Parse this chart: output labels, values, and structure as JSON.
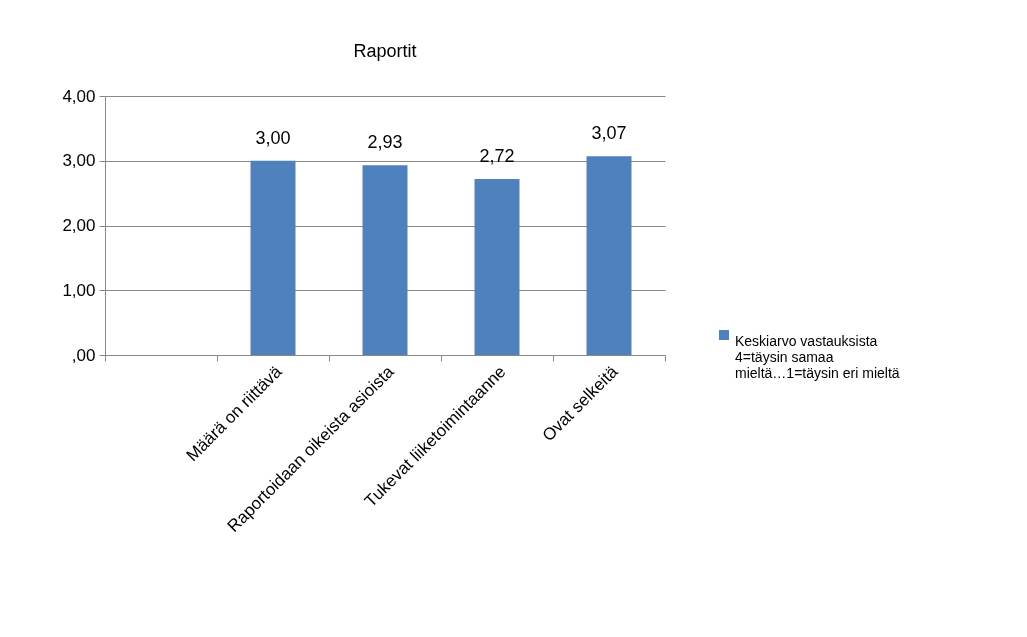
{
  "chart_data": {
    "type": "bar",
    "title": "Raportit",
    "categories": [
      null,
      "Määrä on riittävä",
      "Raportoidaan oikeista asioista",
      "Tukevat liiketoimintaanne",
      "Ovat selkeitä"
    ],
    "series": [
      {
        "name": "Keskiarvo vastauksista 4=täysin samaa mieltä…1=täysin eri mieltä",
        "color": "#4f81bd",
        "values": [
          null,
          3.0,
          2.93,
          2.72,
          3.07
        ],
        "value_labels": [
          null,
          "3,00",
          "2,93",
          "2,72",
          "3,07"
        ]
      }
    ],
    "ylim": [
      0,
      4
    ],
    "yticks": [
      {
        "value": 0,
        "label": ",00"
      },
      {
        "value": 1,
        "label": "1,00"
      },
      {
        "value": 2,
        "label": "2,00"
      },
      {
        "value": 3,
        "label": "3,00"
      },
      {
        "value": 4,
        "label": "4,00"
      }
    ],
    "grid": "y",
    "legend": "right"
  }
}
